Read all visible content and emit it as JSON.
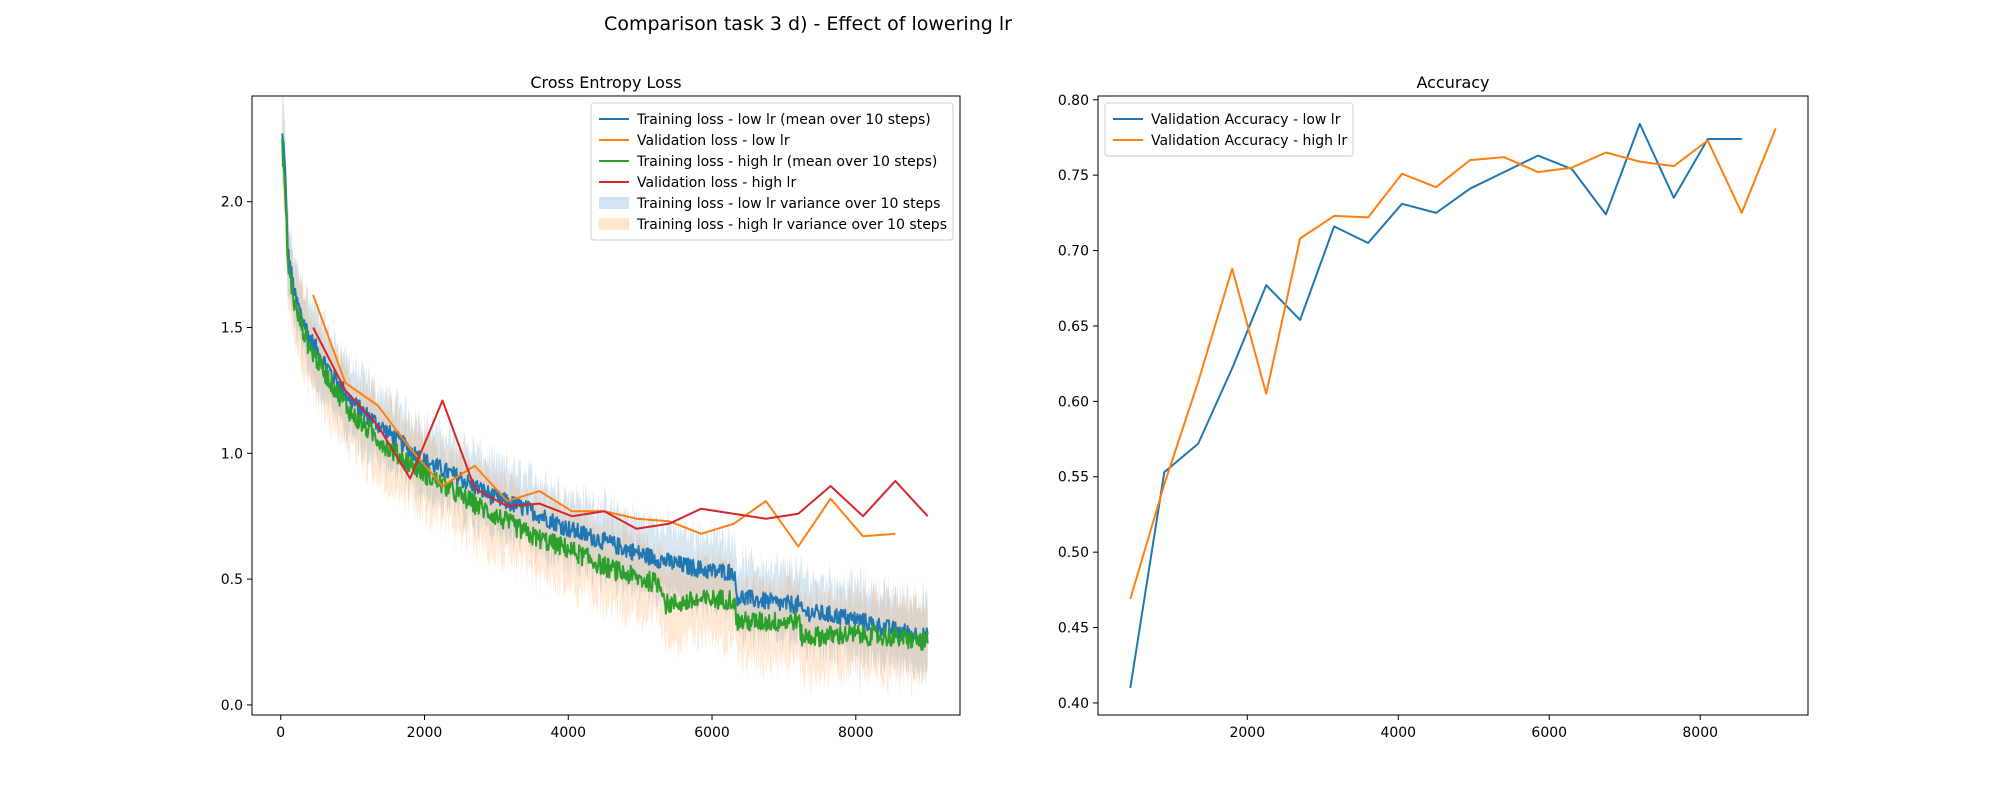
{
  "figure": {
    "suptitle": "Comparison task 3 d) - Effect of lowering lr"
  },
  "chart_data": [
    {
      "type": "line",
      "title": "Cross Entropy Loss",
      "xlabel": "",
      "ylabel": "",
      "xlim": [
        -400,
        9450
      ],
      "ylim": [
        -0.04,
        2.42
      ],
      "xticks": [
        0,
        2000,
        4000,
        6000,
        8000
      ],
      "yticks": [
        0.0,
        0.5,
        1.0,
        1.5,
        2.0
      ],
      "xtick_labels": [
        "0",
        "2000",
        "4000",
        "6000",
        "8000"
      ],
      "ytick_labels": [
        "0.0",
        "0.5",
        "1.0",
        "1.5",
        "2.0"
      ],
      "grid": false,
      "legend_position": "top-right",
      "legend": [
        {
          "label": "Training loss - low lr (mean over 10 steps)",
          "kind": "line",
          "color": "#1f77b4"
        },
        {
          "label": "Validation loss - low lr",
          "kind": "line",
          "color": "#ff7f0e"
        },
        {
          "label": "Training loss - high lr (mean over 10 steps)",
          "kind": "line",
          "color": "#2ca02c"
        },
        {
          "label": "Validation loss - high lr",
          "kind": "line",
          "color": "#d62728"
        },
        {
          "label": "Training loss - low lr variance over 10 steps",
          "kind": "band",
          "color": "#1f77b4"
        },
        {
          "label": "Training loss - high lr variance over 10 steps",
          "kind": "band",
          "color": "#ff7f0e"
        }
      ],
      "series": [
        {
          "name": "Validation loss - low lr",
          "color": "#ff7f0e",
          "x": [
            450,
            900,
            1350,
            1800,
            2250,
            2700,
            3150,
            3600,
            4050,
            4500,
            4950,
            5400,
            5850,
            6300,
            6750,
            7200,
            7650,
            8100,
            8550
          ],
          "y": [
            1.63,
            1.28,
            1.19,
            1.02,
            0.87,
            0.95,
            0.81,
            0.85,
            0.77,
            0.77,
            0.74,
            0.73,
            0.68,
            0.72,
            0.81,
            0.63,
            0.82,
            0.67,
            0.68
          ]
        },
        {
          "name": "Validation loss - high lr",
          "color": "#d62728",
          "x": [
            450,
            900,
            1350,
            1800,
            2250,
            2700,
            3150,
            3600,
            4050,
            4500,
            4950,
            5400,
            5850,
            6300,
            6750,
            7200,
            7650,
            8100,
            8550,
            9000
          ],
          "y": [
            1.5,
            1.25,
            1.11,
            0.9,
            1.21,
            0.86,
            0.79,
            0.8,
            0.75,
            0.77,
            0.7,
            0.72,
            0.78,
            0.76,
            0.74,
            0.76,
            0.87,
            0.75,
            0.89,
            0.75
          ]
        },
        {
          "name": "Training loss - low lr (mean over 10 steps)",
          "color": "#1f77b4",
          "kind": "noisy",
          "anchors_x": [
            0,
            50,
            100,
            200,
            400,
            700,
            1000,
            1500,
            2000,
            2500,
            3000,
            3500,
            4000,
            4500,
            5000,
            5500,
            6000,
            6300,
            6350,
            7000,
            7200,
            7250,
            7600,
            8000,
            8500,
            9000
          ],
          "anchors_y": [
            2.3,
            2.2,
            1.8,
            1.62,
            1.46,
            1.32,
            1.2,
            1.08,
            0.97,
            0.9,
            0.82,
            0.77,
            0.7,
            0.65,
            0.6,
            0.56,
            0.53,
            0.53,
            0.43,
            0.4,
            0.4,
            0.37,
            0.36,
            0.34,
            0.3,
            0.27
          ],
          "noise_amp": 0.035,
          "band_amp": 0.14,
          "band_color": "#1f77b4"
        },
        {
          "name": "Training loss - high lr (mean over 10 steps)",
          "color": "#2ca02c",
          "kind": "noisy",
          "anchors_x": [
            0,
            50,
            100,
            200,
            400,
            700,
            1000,
            1500,
            2000,
            2500,
            3000,
            3500,
            4000,
            4500,
            5000,
            5300,
            5350,
            6000,
            6300,
            6350,
            7000,
            7200,
            7250,
            8000,
            8500,
            9000
          ],
          "anchors_y": [
            2.3,
            2.1,
            1.75,
            1.58,
            1.42,
            1.28,
            1.15,
            1.02,
            0.92,
            0.83,
            0.75,
            0.67,
            0.62,
            0.55,
            0.5,
            0.48,
            0.4,
            0.42,
            0.42,
            0.33,
            0.33,
            0.34,
            0.27,
            0.28,
            0.27,
            0.25
          ],
          "noise_amp": 0.04,
          "band_amp": 0.15,
          "band_color": "#ff7f0e"
        }
      ]
    },
    {
      "type": "line",
      "title": "Accuracy",
      "xlabel": "",
      "ylabel": "",
      "xlim": [
        22,
        9428
      ],
      "ylim": [
        0.392,
        0.8025
      ],
      "xticks": [
        2000,
        4000,
        6000,
        8000
      ],
      "yticks": [
        0.4,
        0.45,
        0.5,
        0.55,
        0.6,
        0.65,
        0.7,
        0.75,
        0.8
      ],
      "xtick_labels": [
        "2000",
        "4000",
        "6000",
        "8000"
      ],
      "ytick_labels": [
        "0.40",
        "0.45",
        "0.50",
        "0.55",
        "0.60",
        "0.65",
        "0.70",
        "0.75",
        "0.80"
      ],
      "grid": false,
      "legend_position": "top-left",
      "legend": [
        {
          "label": "Validation Accuracy - low lr",
          "kind": "line",
          "color": "#1f77b4"
        },
        {
          "label": "Validation Accuracy - high lr",
          "kind": "line",
          "color": "#ff7f0e"
        }
      ],
      "series": [
        {
          "name": "Validation Accuracy - low lr",
          "color": "#1f77b4",
          "x": [
            450,
            900,
            1350,
            1800,
            2250,
            2700,
            3150,
            3600,
            4050,
            4500,
            4950,
            5400,
            5850,
            6300,
            6750,
            7200,
            7650,
            8100,
            8550
          ],
          "y": [
            0.41,
            0.553,
            0.572,
            0.622,
            0.677,
            0.654,
            0.716,
            0.705,
            0.731,
            0.725,
            0.741,
            0.752,
            0.763,
            0.754,
            0.724,
            0.784,
            0.735,
            0.774,
            0.774
          ]
        },
        {
          "name": "Validation Accuracy - high lr",
          "color": "#ff7f0e",
          "x": [
            450,
            900,
            1350,
            1800,
            2250,
            2700,
            3150,
            3600,
            4050,
            4500,
            4950,
            5400,
            5850,
            6300,
            6750,
            7200,
            7650,
            8100,
            8550,
            9000
          ],
          "y": [
            0.469,
            0.545,
            0.613,
            0.688,
            0.605,
            0.708,
            0.723,
            0.722,
            0.751,
            0.742,
            0.76,
            0.762,
            0.752,
            0.755,
            0.765,
            0.759,
            0.756,
            0.773,
            0.725,
            0.781
          ]
        }
      ]
    }
  ]
}
